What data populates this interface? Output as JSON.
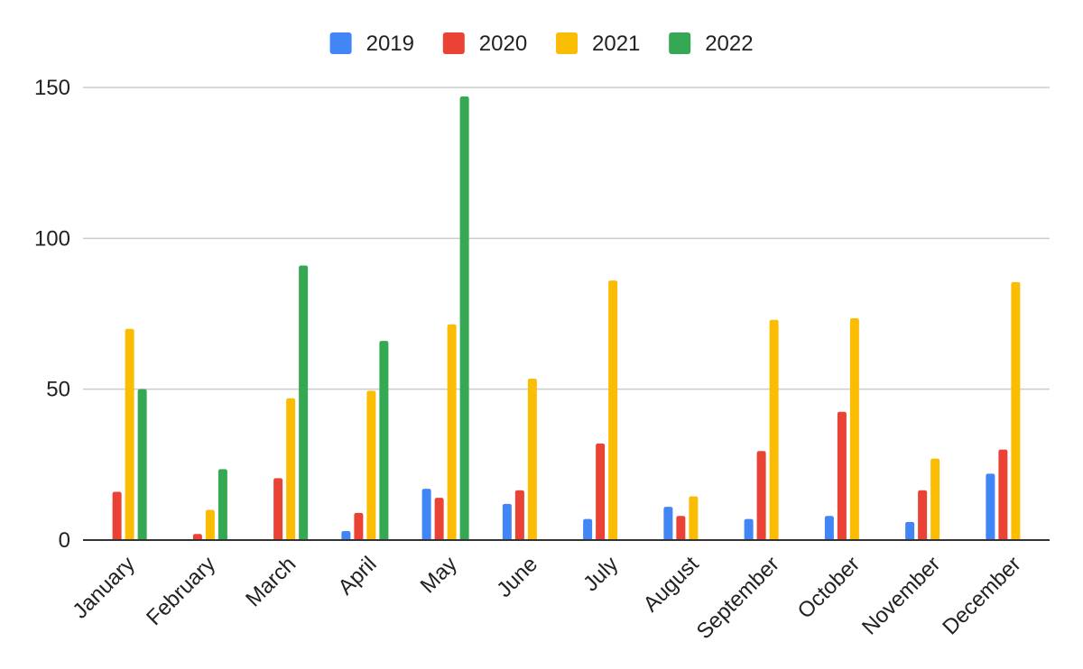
{
  "chart_data": {
    "type": "bar",
    "categories": [
      "January",
      "February",
      "March",
      "April",
      "May",
      "June",
      "July",
      "August",
      "September",
      "October",
      "November",
      "December"
    ],
    "series": [
      {
        "name": "2019",
        "color": "#4285f4",
        "values": [
          0,
          0,
          0.3,
          3,
          17,
          12,
          7,
          11,
          7,
          8,
          6,
          22
        ]
      },
      {
        "name": "2020",
        "color": "#ea4335",
        "values": [
          16,
          2,
          20.5,
          9,
          14,
          16.5,
          32,
          8,
          29.5,
          42.5,
          16.5,
          30
        ]
      },
      {
        "name": "2021",
        "color": "#fbbc04",
        "values": [
          70,
          10,
          47,
          49.5,
          71.5,
          53.5,
          86,
          14.5,
          73,
          73.5,
          27,
          85.5
        ]
      },
      {
        "name": "2022",
        "color": "#34a853",
        "values": [
          50,
          23.5,
          91,
          66,
          147,
          0,
          0,
          0,
          0,
          0,
          0,
          0
        ]
      }
    ],
    "ylim": [
      0,
      150
    ],
    "yticks": [
      0,
      50,
      100,
      150
    ],
    "xlabel": "",
    "ylabel": "",
    "title": "",
    "grid": true,
    "legend": "top-center"
  }
}
